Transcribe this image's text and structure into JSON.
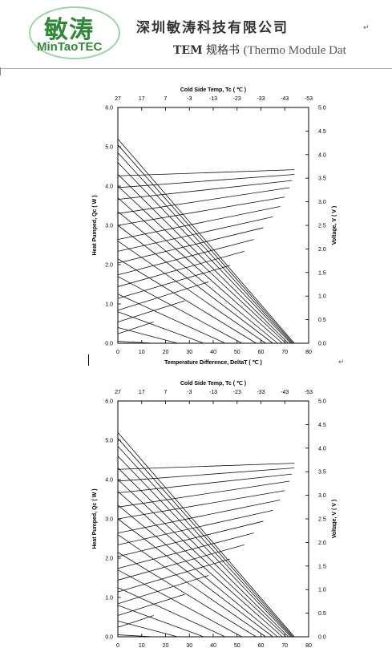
{
  "header": {
    "logo_cn": "敏涛",
    "logo_en": "MinTaoTEC",
    "company": "深圳敏涛科技有限公司",
    "subtitle_tem": "TEM",
    "subtitle_cn": "规格书",
    "subtitle_paren": "(Thermo Module Dat",
    "return_mark": "↵"
  },
  "chart_data": [
    {
      "type": "line",
      "top_axis_label": "Cold Side Temp, Tc ( ℃ )",
      "xlabel": "Temperature Difference, DeltaT ( ℃ )",
      "ylabel_left": "Heat Pumped, Qc ( W )",
      "ylabel_right": "Voltage, V ( V )",
      "xlim": [
        0,
        80
      ],
      "ylim_left": [
        0,
        6
      ],
      "ylim_right": [
        0,
        5
      ],
      "x_ticks": [
        "0",
        "10",
        "20",
        "30",
        "40",
        "50",
        "60",
        "70",
        "80"
      ],
      "top_ticks": [
        "27",
        "17",
        "7",
        "-3",
        "-13",
        "-23",
        "-33",
        "-43",
        "-53"
      ],
      "left_ticks": [
        "0.0",
        "1.0",
        "2.0",
        "3.0",
        "4.0",
        "5.0",
        "6.0"
      ],
      "right_ticks": [
        "0.0",
        "0.5",
        "1.0",
        "1.5",
        "2.0",
        "2.5",
        "3.0",
        "3.5",
        "4.0",
        "4.5",
        "5.0"
      ],
      "grid": false,
      "qc_lines": [
        {
          "qmax": 5.2,
          "dtmax": 74
        },
        {
          "qmax": 5.05,
          "dtmax": 73.5
        },
        {
          "qmax": 4.85,
          "dtmax": 73
        },
        {
          "qmax": 4.6,
          "dtmax": 72.5
        },
        {
          "qmax": 4.3,
          "dtmax": 71.5
        },
        {
          "qmax": 4.0,
          "dtmax": 70.5
        },
        {
          "qmax": 3.7,
          "dtmax": 69
        },
        {
          "qmax": 3.35,
          "dtmax": 67
        },
        {
          "qmax": 3.0,
          "dtmax": 65
        },
        {
          "qmax": 2.6,
          "dtmax": 62
        },
        {
          "qmax": 2.15,
          "dtmax": 58
        },
        {
          "qmax": 1.7,
          "dtmax": 52
        },
        {
          "qmax": 1.25,
          "dtmax": 45
        },
        {
          "qmax": 0.8,
          "dtmax": 36
        },
        {
          "qmax": 0.4,
          "dtmax": 25
        },
        {
          "qmax": 0.05,
          "dtmax": 15
        }
      ],
      "v_lines": [
        {
          "v0": 0.2,
          "dt_end": 15,
          "v_end": 0.45
        },
        {
          "v0": 0.45,
          "dt_end": 28,
          "v_end": 0.9
        },
        {
          "v0": 0.7,
          "dt_end": 38,
          "v_end": 1.3
        },
        {
          "v0": 0.95,
          "dt_end": 47,
          "v_end": 1.65
        },
        {
          "v0": 1.2,
          "dt_end": 53,
          "v_end": 1.95
        },
        {
          "v0": 1.45,
          "dt_end": 57,
          "v_end": 2.2
        },
        {
          "v0": 1.7,
          "dt_end": 61,
          "v_end": 2.45
        },
        {
          "v0": 1.95,
          "dt_end": 65,
          "v_end": 2.68
        },
        {
          "v0": 2.2,
          "dt_end": 68,
          "v_end": 2.9
        },
        {
          "v0": 2.5,
          "dt_end": 70,
          "v_end": 3.1
        },
        {
          "v0": 2.75,
          "dt_end": 72,
          "v_end": 3.3
        },
        {
          "v0": 3.05,
          "dt_end": 73,
          "v_end": 3.45
        },
        {
          "v0": 3.3,
          "dt_end": 74,
          "v_end": 3.58
        },
        {
          "v0": 3.55,
          "dt_end": 74,
          "v_end": 3.68
        }
      ]
    },
    {
      "type": "line",
      "top_axis_label": "Cold Side Temp, Tc ( ℃ )",
      "xlabel": "",
      "ylabel_left": "Heat Pumped, Qc ( W )",
      "ylabel_right": "Voltage, V ( V )",
      "xlim": [
        0,
        80
      ],
      "ylim_left": [
        0,
        6
      ],
      "ylim_right": [
        0,
        5
      ],
      "x_ticks": [
        "0",
        "10",
        "20",
        "30",
        "40",
        "50",
        "60",
        "70",
        "80"
      ],
      "top_ticks": [
        "27",
        "17",
        "7",
        "-3",
        "-13",
        "-23",
        "-33",
        "-43",
        "-53"
      ],
      "left_ticks": [
        "0.0",
        "1.0",
        "2.0",
        "3.0",
        "4.0",
        "5.0",
        "6.0"
      ],
      "right_ticks": [
        "0.0",
        "0.5",
        "1.0",
        "1.5",
        "2.0",
        "2.5",
        "3.0",
        "3.5",
        "4.0",
        "4.5",
        "5.0"
      ],
      "grid": false,
      "qc_lines": [
        {
          "qmax": 5.2,
          "dtmax": 74
        },
        {
          "qmax": 5.05,
          "dtmax": 73.5
        },
        {
          "qmax": 4.85,
          "dtmax": 73
        },
        {
          "qmax": 4.6,
          "dtmax": 72.5
        },
        {
          "qmax": 4.3,
          "dtmax": 71.5
        },
        {
          "qmax": 4.0,
          "dtmax": 70.5
        },
        {
          "qmax": 3.7,
          "dtmax": 69
        },
        {
          "qmax": 3.35,
          "dtmax": 67
        },
        {
          "qmax": 3.0,
          "dtmax": 65
        },
        {
          "qmax": 2.6,
          "dtmax": 62
        },
        {
          "qmax": 2.15,
          "dtmax": 58
        },
        {
          "qmax": 1.7,
          "dtmax": 52
        },
        {
          "qmax": 1.25,
          "dtmax": 45
        },
        {
          "qmax": 0.8,
          "dtmax": 36
        },
        {
          "qmax": 0.4,
          "dtmax": 25
        },
        {
          "qmax": 0.05,
          "dtmax": 15
        }
      ],
      "v_lines": [
        {
          "v0": 0.2,
          "dt_end": 15,
          "v_end": 0.45
        },
        {
          "v0": 0.45,
          "dt_end": 28,
          "v_end": 0.9
        },
        {
          "v0": 0.7,
          "dt_end": 38,
          "v_end": 1.3
        },
        {
          "v0": 0.95,
          "dt_end": 47,
          "v_end": 1.65
        },
        {
          "v0": 1.2,
          "dt_end": 53,
          "v_end": 1.95
        },
        {
          "v0": 1.45,
          "dt_end": 57,
          "v_end": 2.2
        },
        {
          "v0": 1.7,
          "dt_end": 61,
          "v_end": 2.45
        },
        {
          "v0": 1.95,
          "dt_end": 65,
          "v_end": 2.68
        },
        {
          "v0": 2.2,
          "dt_end": 68,
          "v_end": 2.9
        },
        {
          "v0": 2.5,
          "dt_end": 70,
          "v_end": 3.1
        },
        {
          "v0": 2.75,
          "dt_end": 72,
          "v_end": 3.3
        },
        {
          "v0": 3.05,
          "dt_end": 73,
          "v_end": 3.45
        },
        {
          "v0": 3.3,
          "dt_end": 74,
          "v_end": 3.58
        },
        {
          "v0": 3.55,
          "dt_end": 74,
          "v_end": 3.68
        }
      ]
    }
  ]
}
